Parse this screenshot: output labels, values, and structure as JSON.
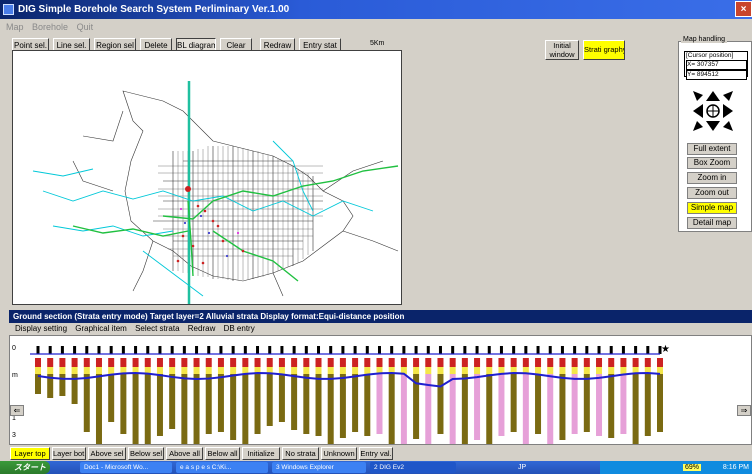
{
  "window": {
    "title": "DIG Simple Borehole Search System Perliminary Ver.1.00",
    "close": "×"
  },
  "menu": [
    "Map",
    "Borehole",
    "Quit"
  ],
  "toolbar": {
    "point_sel": "Point sel.",
    "line_sel": "Line sel.",
    "region_sel": "Region sel",
    "delete": "Delete",
    "bl_diagram": "BL diagram",
    "clear": "Clear",
    "redraw": "Redraw",
    "entry_stat": "Entry stat"
  },
  "scale_label": "5Km",
  "right_buttons": {
    "initial_window": "Initial window",
    "strati_graphy": "Strati graphy"
  },
  "map_handling": {
    "title": "Map handling",
    "cursor_label": "[Cursor position]",
    "x": "X= 307357",
    "y": "Y= 894512",
    "buttons": [
      "Full extent",
      "Box Zoom",
      "Zoom in",
      "Zoom out",
      "Simple map",
      "Detail map"
    ]
  },
  "section": {
    "title": "Ground section (Strata entry mode)   Target layer=2  Alluvial strata   Display format:Equi-distance position",
    "menu": [
      "Display setting",
      "Graphical item",
      "Select strata",
      "Redraw",
      "DB entry"
    ],
    "left_arrow": "⇐",
    "right_arrow": "⇒",
    "left_labels": [
      "0",
      "m",
      "1",
      "3"
    ]
  },
  "bottom_buttons": [
    "Layer top",
    "Layer bot.",
    "Above sel",
    "Below sel",
    "Above all",
    "Below all",
    "Initialize",
    "No strata",
    "Unknown",
    "Entry val."
  ],
  "taskbar": {
    "start": "スタート",
    "tasks": [
      "Doc1 - Microsoft Wo...",
      "e a s p e s  C:\\Ki...",
      "3 Windows Explorer",
      "2 DIG Ev2"
    ],
    "lang": "JP",
    "tray_text": "69%",
    "clock": "8:16 PM"
  },
  "colors": {
    "title_bar": "#0a246a",
    "highlight": "#ffff00",
    "strata_olive": "#7a6a12",
    "strata_pink": "#e6a0d8",
    "strata_purple": "#a04ab0",
    "blue_line": "#2020d0"
  }
}
